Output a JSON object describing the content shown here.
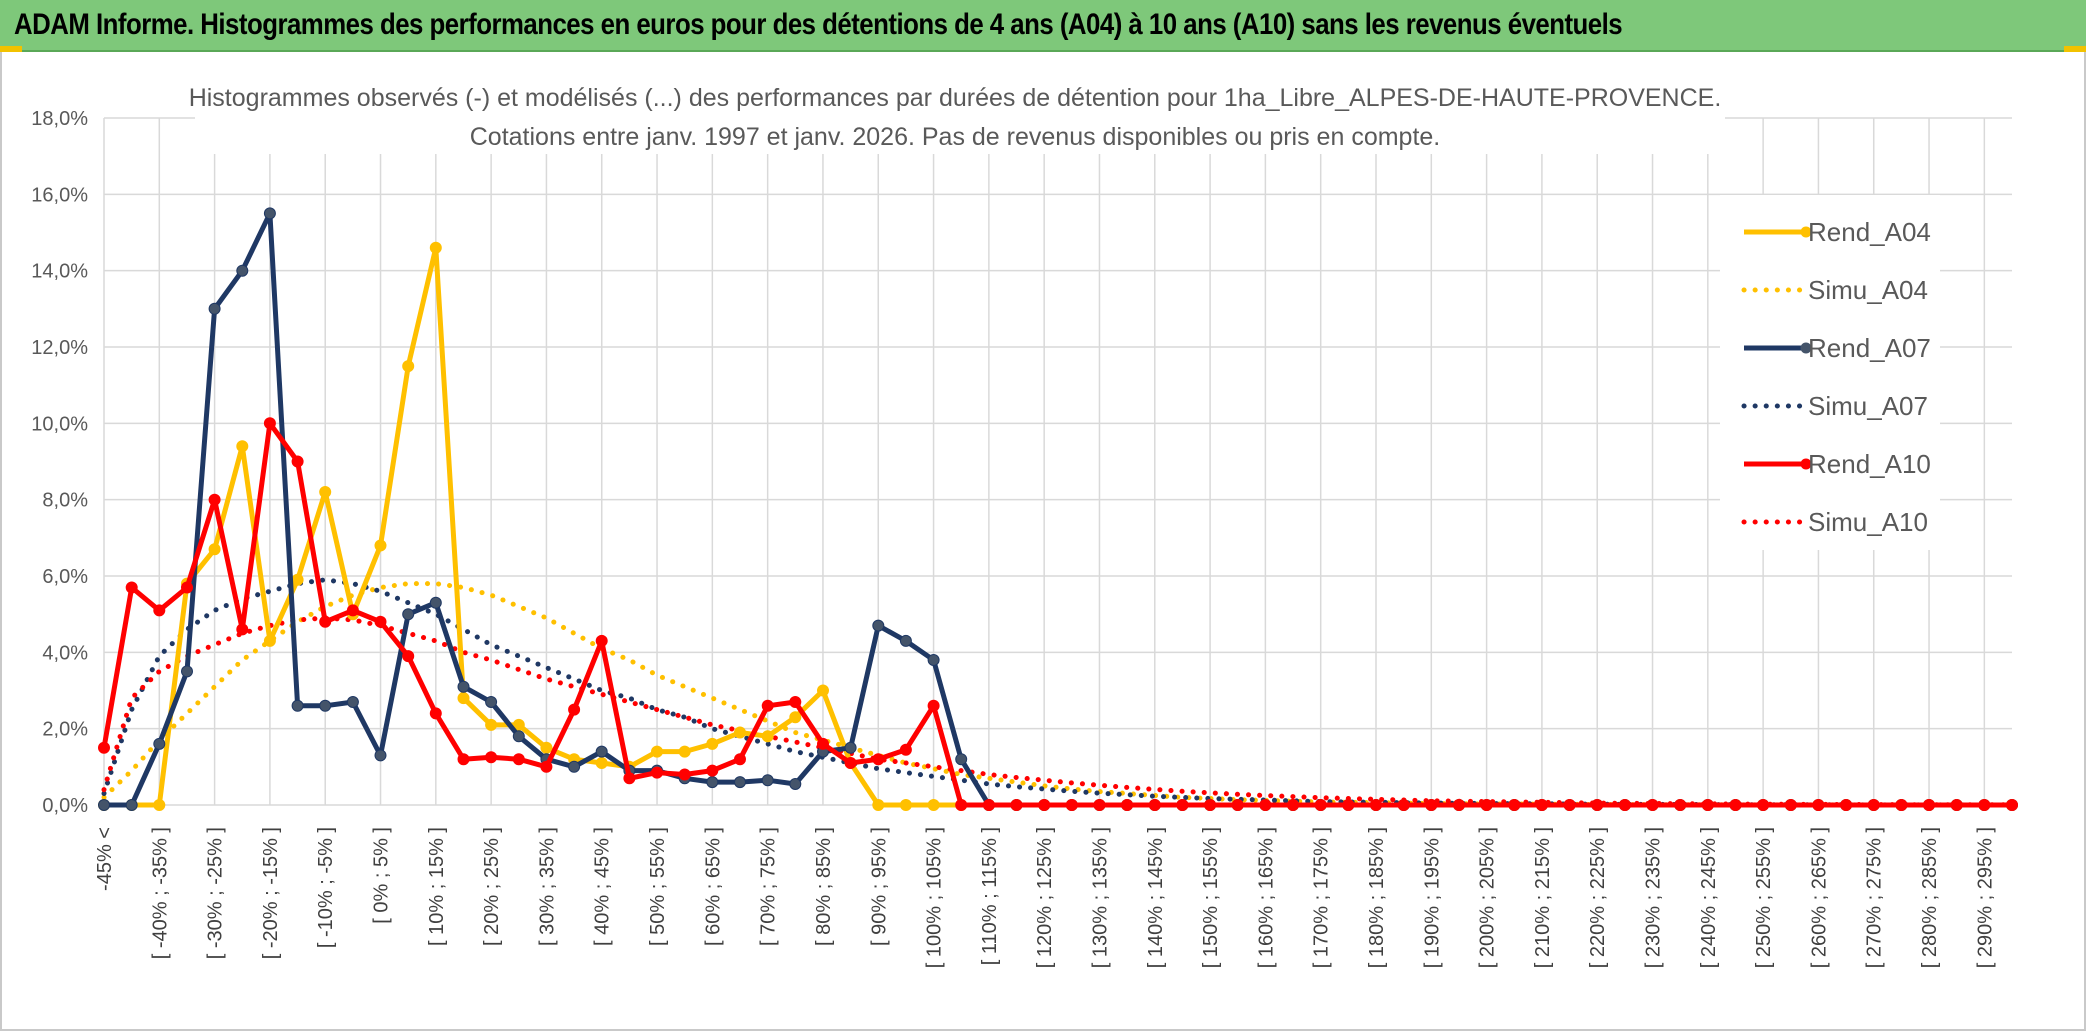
{
  "header": {
    "title": "ADAM Informe. Histogrammes des performances en euros pour des détentions de 4 ans (A04) à 10 ans (A10) sans les revenus éventuels"
  },
  "colors": {
    "header_bg": "#7ec87a",
    "accent_gold": "#f2c200",
    "grid": "#d9d9d9"
  },
  "chart_data": {
    "type": "line",
    "title_line1": "Histogrammes observés (-) et modélisés (...) des performances par durées de détention pour 1ha_Libre_ALPES-DE-HAUTE-PROVENCE.",
    "title_line2": "Cotations entre janv. 1997 et janv. 2026. Pas de revenus disponibles ou pris en compte.",
    "ylim": [
      0,
      18
    ],
    "y_ticks": [
      "0,0%",
      "2,0%",
      "4,0%",
      "6,0%",
      "8,0%",
      "10,0%",
      "12,0%",
      "14,0%",
      "16,0%",
      "18,0%"
    ],
    "x_labels": [
      "-45% <",
      "[ -40% ; -35% ]",
      "[ -30% ; -25% ]",
      "[ -20% ; -15% ]",
      "[ -10% ; -5% ]",
      "[ 0% ; 5% ]",
      "[ 10% ; 15% ]",
      "[ 20% ; 25% ]",
      "[ 30% ; 35% ]",
      "[ 40% ; 45% ]",
      "[ 50% ; 55% ]",
      "[ 60% ; 65% ]",
      "[ 70% ; 75% ]",
      "[ 80% ; 85% ]",
      "[ 90% ; 95% ]",
      "[ 100% ; 105% ]",
      "[ 110% ; 115% ]",
      "[ 120% ; 125% ]",
      "[ 130% ; 135% ]",
      "[ 140% ; 145% ]",
      "[ 150% ; 155% ]",
      "[ 160% ; 165% ]",
      "[ 170% ; 175% ]",
      "[ 180% ; 185% ]",
      "[ 190% ; 195% ]",
      "[ 200% ; 205% ]",
      "[ 210% ; 215% ]",
      "[ 220% ; 225% ]",
      "[ 230% ; 235% ]",
      "[ 240% ; 245% ]",
      "[ 250% ; 255% ]",
      "[ 260% ; 265% ]",
      "[ 270% ; 275% ]",
      "[ 280% ; 285% ]",
      "[ 290% ; 295% ]"
    ],
    "grid": true,
    "legend_position": "right",
    "series": [
      {
        "name": "Rend_A04",
        "style": "solid",
        "color": "#ffc000",
        "values": [
          0,
          0,
          0,
          5.8,
          6.7,
          9.4,
          4.3,
          5.9,
          8.2,
          5.0,
          6.8,
          11.5,
          14.6,
          2.8,
          2.1,
          2.1,
          1.5,
          1.2,
          1.1,
          1.0,
          1.4,
          1.4,
          1.6,
          1.9,
          1.8,
          2.3,
          3.0,
          1.1,
          0,
          0,
          0,
          0,
          0,
          0,
          0,
          0,
          0,
          0,
          0,
          0,
          0,
          0,
          0,
          0,
          0,
          0,
          0,
          0,
          0,
          0,
          0,
          0,
          0,
          0,
          0,
          0,
          0,
          0,
          0,
          0,
          0,
          0,
          0,
          0,
          0,
          0,
          0,
          0,
          0,
          0
        ]
      },
      {
        "name": "Simu_A04",
        "style": "dotted",
        "color": "#ffc000",
        "values": [
          0.2,
          0.9,
          1.7,
          2.4,
          3.1,
          3.8,
          4.3,
          4.8,
          5.2,
          5.5,
          5.7,
          5.8,
          5.8,
          5.7,
          5.5,
          5.2,
          4.9,
          4.5,
          4.1,
          3.8,
          3.4,
          3.1,
          2.8,
          2.5,
          2.2,
          1.9,
          1.7,
          1.5,
          1.3,
          1.1,
          0.95,
          0.8,
          0.7,
          0.6,
          0.5,
          0.42,
          0.35,
          0.3,
          0.25,
          0.2,
          0.17,
          0.14,
          0.12,
          0.1,
          0.08,
          0.07,
          0.06,
          0.05,
          0.04,
          0.035,
          0.03,
          0.025,
          0.02,
          0.015,
          0.012,
          0.01,
          0.008,
          0.006,
          0.005,
          0.004,
          0.003,
          0.003,
          0.002,
          0.002,
          0.001,
          0.001,
          0.001,
          0.001,
          0.001,
          0
        ]
      },
      {
        "name": "Rend_A07",
        "style": "solid",
        "color": "#1f3864",
        "values": [
          0,
          0,
          1.6,
          3.5,
          13.0,
          14.0,
          15.5,
          2.6,
          2.6,
          2.7,
          1.3,
          5.0,
          5.3,
          3.1,
          2.7,
          1.8,
          1.2,
          1.0,
          1.4,
          0.9,
          0.9,
          0.7,
          0.6,
          0.6,
          0.65,
          0.55,
          1.4,
          1.5,
          4.7,
          4.3,
          3.8,
          1.2,
          0,
          0,
          0,
          0,
          0,
          0,
          0,
          0,
          0,
          0,
          0,
          0,
          0,
          0,
          0,
          0,
          0,
          0,
          0,
          0,
          0,
          0,
          0,
          0,
          0,
          0,
          0,
          0,
          0,
          0,
          0,
          0,
          0,
          0,
          0,
          0,
          0,
          0
        ]
      },
      {
        "name": "Simu_A07",
        "style": "dotted",
        "color": "#1f3864",
        "values": [
          0.3,
          2.5,
          3.9,
          4.6,
          5.1,
          5.4,
          5.6,
          5.8,
          5.9,
          5.8,
          5.6,
          5.3,
          5.0,
          4.6,
          4.2,
          3.9,
          3.6,
          3.3,
          3.0,
          2.8,
          2.5,
          2.3,
          2.0,
          1.8,
          1.6,
          1.4,
          1.25,
          1.1,
          0.95,
          0.85,
          0.75,
          0.65,
          0.55,
          0.48,
          0.42,
          0.36,
          0.31,
          0.27,
          0.23,
          0.2,
          0.17,
          0.15,
          0.13,
          0.11,
          0.09,
          0.08,
          0.07,
          0.06,
          0.05,
          0.045,
          0.04,
          0.035,
          0.03,
          0.025,
          0.02,
          0.017,
          0.015,
          0.012,
          0.01,
          0.008,
          0.007,
          0.006,
          0.005,
          0.004,
          0.003,
          0.003,
          0.002,
          0.002,
          0.001,
          0.001
        ]
      },
      {
        "name": "Rend_A10",
        "style": "solid",
        "color": "#ff0000",
        "values": [
          1.5,
          5.7,
          5.1,
          5.7,
          8.0,
          4.6,
          10.0,
          9.0,
          4.8,
          5.1,
          4.8,
          3.9,
          2.4,
          1.2,
          1.25,
          1.2,
          1.0,
          2.5,
          4.3,
          0.7,
          0.85,
          0.8,
          0.9,
          1.2,
          2.6,
          2.7,
          1.6,
          1.1,
          1.2,
          1.45,
          2.6,
          0,
          0,
          0,
          0,
          0,
          0,
          0,
          0,
          0,
          0,
          0,
          0,
          0,
          0,
          0,
          0,
          0,
          0,
          0,
          0,
          0,
          0,
          0,
          0,
          0,
          0,
          0,
          0,
          0,
          0,
          0,
          0,
          0,
          0,
          0,
          0,
          0,
          0,
          0
        ]
      },
      {
        "name": "Simu_A10",
        "style": "dotted",
        "color": "#ff0000",
        "values": [
          0.4,
          2.8,
          3.5,
          3.9,
          4.2,
          4.5,
          4.7,
          4.85,
          4.9,
          4.85,
          4.7,
          4.5,
          4.3,
          4.0,
          3.8,
          3.55,
          3.3,
          3.1,
          2.9,
          2.7,
          2.5,
          2.3,
          2.1,
          1.95,
          1.8,
          1.65,
          1.5,
          1.35,
          1.2,
          1.1,
          1.0,
          0.9,
          0.8,
          0.72,
          0.65,
          0.58,
          0.52,
          0.46,
          0.41,
          0.36,
          0.32,
          0.28,
          0.25,
          0.22,
          0.19,
          0.17,
          0.15,
          0.13,
          0.11,
          0.1,
          0.09,
          0.08,
          0.07,
          0.06,
          0.05,
          0.045,
          0.04,
          0.035,
          0.03,
          0.025,
          0.02,
          0.018,
          0.015,
          0.012,
          0.01,
          0.009,
          0.008,
          0.007,
          0.006,
          0.005
        ]
      }
    ]
  }
}
